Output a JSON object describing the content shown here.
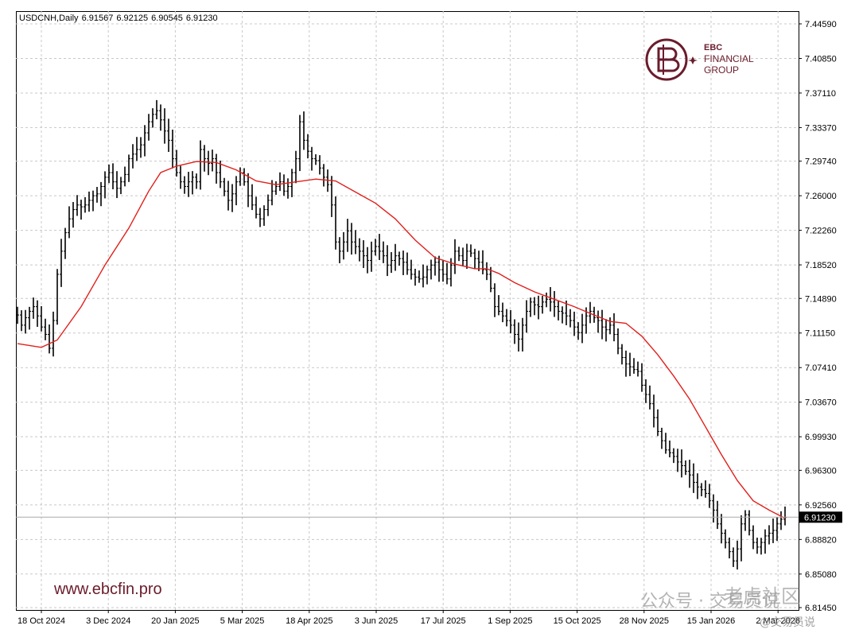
{
  "header": {
    "symbol": "USDCNH,Daily",
    "open": "6.91567",
    "high": "6.92125",
    "low": "6.90545",
    "close": "6.91230"
  },
  "branding": {
    "logo_line1": "EBC",
    "logo_line2": "FINANCIAL",
    "logo_line3": "GROUP",
    "website": "www.ebcfin.pro",
    "brand_color": "#6a1c2c",
    "watermark_1": "公众号 · 交易员说",
    "watermark_2": "老虎社区",
    "watermark_3": "@交易员说"
  },
  "colors": {
    "candles": "#000000",
    "moving_average": "#e0201c",
    "grid": "#c8c8c8",
    "current_price_line": "#a8a8a8",
    "price_tag_bg": "#000000",
    "price_tag_text": "#ffffff"
  },
  "chart_data": {
    "type": "line",
    "title": "",
    "xlabel": "",
    "ylabel": "",
    "ylim": [
      6.8145,
      7.4459
    ],
    "y_ticks": [
      "7.44590",
      "7.40850",
      "7.37110",
      "7.33370",
      "7.29740",
      "7.26000",
      "7.22260",
      "7.18520",
      "7.14890",
      "7.11150",
      "7.07410",
      "7.03670",
      "6.99930",
      "6.96300",
      "6.92560",
      "6.88820",
      "6.85080",
      "6.81450"
    ],
    "x_ticks": [
      "18 Oct 2024",
      "3 Dec 2024",
      "20 Jan 2025",
      "5 Mar 2025",
      "18 Apr 2025",
      "3 Jun 2025",
      "17 Jul 2025",
      "1 Sep 2025",
      "15 Oct 2025",
      "28 Nov 2025",
      "15 Jan 2026",
      "2 Mar 2026"
    ],
    "current_price": 6.9123,
    "current_price_label": "6.91230",
    "grid": true,
    "series": [
      {
        "kind": "bars",
        "points": [
          [
            0,
            7.131
          ],
          [
            2,
            7.12
          ],
          [
            4,
            7.128
          ],
          [
            6,
            7.135
          ],
          [
            8,
            7.14
          ],
          [
            10,
            7.13
          ],
          [
            12,
            7.118
          ],
          [
            14,
            7.11
          ],
          [
            16,
            7.095
          ],
          [
            18,
            7.125
          ],
          [
            20,
            7.175
          ],
          [
            22,
            7.2
          ],
          [
            24,
            7.22
          ],
          [
            26,
            7.235
          ],
          [
            28,
            7.245
          ],
          [
            30,
            7.25
          ],
          [
            32,
            7.248
          ],
          [
            34,
            7.25
          ],
          [
            36,
            7.255
          ],
          [
            38,
            7.26
          ],
          [
            40,
            7.262
          ],
          [
            42,
            7.27
          ],
          [
            44,
            7.28
          ],
          [
            46,
            7.285
          ],
          [
            48,
            7.275
          ],
          [
            50,
            7.268
          ],
          [
            52,
            7.275
          ],
          [
            54,
            7.283
          ],
          [
            56,
            7.3
          ],
          [
            58,
            7.305
          ],
          [
            60,
            7.31
          ],
          [
            62,
            7.315
          ],
          [
            64,
            7.328
          ],
          [
            66,
            7.34
          ],
          [
            68,
            7.348
          ],
          [
            70,
            7.352
          ],
          [
            72,
            7.342
          ],
          [
            74,
            7.33
          ],
          [
            76,
            7.32
          ],
          [
            78,
            7.3
          ],
          [
            80,
            7.285
          ],
          [
            82,
            7.275
          ],
          [
            84,
            7.27
          ],
          [
            86,
            7.275
          ],
          [
            88,
            7.28
          ],
          [
            90,
            7.275
          ],
          [
            92,
            7.31
          ],
          [
            94,
            7.3
          ],
          [
            96,
            7.295
          ],
          [
            98,
            7.3
          ],
          [
            100,
            7.285
          ],
          [
            102,
            7.275
          ],
          [
            104,
            7.265
          ],
          [
            106,
            7.255
          ],
          [
            108,
            7.262
          ],
          [
            110,
            7.275
          ],
          [
            112,
            7.285
          ],
          [
            114,
            7.275
          ],
          [
            116,
            7.26
          ],
          [
            118,
            7.25
          ],
          [
            120,
            7.24
          ],
          [
            122,
            7.235
          ],
          [
            124,
            7.245
          ],
          [
            126,
            7.255
          ],
          [
            128,
            7.265
          ],
          [
            130,
            7.27
          ],
          [
            132,
            7.275
          ],
          [
            134,
            7.265
          ],
          [
            136,
            7.27
          ],
          [
            138,
            7.285
          ],
          [
            140,
            7.3
          ],
          [
            142,
            7.34
          ],
          [
            144,
            7.32
          ],
          [
            146,
            7.308
          ],
          [
            148,
            7.3
          ],
          [
            150,
            7.298
          ],
          [
            152,
            7.29
          ],
          [
            154,
            7.28
          ],
          [
            156,
            7.272
          ],
          [
            158,
            7.25
          ],
          [
            160,
            7.21
          ],
          [
            162,
            7.2
          ],
          [
            164,
            7.21
          ],
          [
            166,
            7.222
          ],
          [
            168,
            7.21
          ],
          [
            170,
            7.205
          ],
          [
            172,
            7.2
          ],
          [
            174,
            7.195
          ],
          [
            176,
            7.19
          ],
          [
            178,
            7.2
          ],
          [
            180,
            7.205
          ],
          [
            182,
            7.2
          ],
          [
            184,
            7.195
          ],
          [
            186,
            7.185
          ],
          [
            188,
            7.19
          ],
          [
            190,
            7.195
          ],
          [
            192,
            7.192
          ],
          [
            194,
            7.188
          ],
          [
            196,
            7.18
          ],
          [
            198,
            7.175
          ],
          [
            200,
            7.172
          ],
          [
            202,
            7.17
          ],
          [
            204,
            7.172
          ],
          [
            206,
            7.18
          ],
          [
            208,
            7.185
          ],
          [
            210,
            7.188
          ],
          [
            212,
            7.18
          ],
          [
            214,
            7.175
          ],
          [
            216,
            7.17
          ],
          [
            218,
            7.185
          ],
          [
            220,
            7.2
          ],
          [
            222,
            7.195
          ],
          [
            224,
            7.19
          ],
          [
            226,
            7.2
          ],
          [
            228,
            7.198
          ],
          [
            230,
            7.192
          ],
          [
            232,
            7.188
          ],
          [
            234,
            7.18
          ],
          [
            236,
            7.175
          ],
          [
            238,
            7.16
          ],
          [
            240,
            7.14
          ],
          [
            242,
            7.135
          ],
          [
            244,
            7.13
          ],
          [
            246,
            7.125
          ],
          [
            248,
            7.12
          ],
          [
            250,
            7.11
          ],
          [
            252,
            7.105
          ],
          [
            254,
            7.12
          ],
          [
            256,
            7.135
          ],
          [
            258,
            7.145
          ],
          [
            260,
            7.142
          ],
          [
            262,
            7.14
          ],
          [
            264,
            7.145
          ],
          [
            266,
            7.148
          ],
          [
            268,
            7.145
          ],
          [
            270,
            7.14
          ],
          [
            272,
            7.135
          ],
          [
            274,
            7.133
          ],
          [
            276,
            7.13
          ],
          [
            278,
            7.125
          ],
          [
            280,
            7.118
          ],
          [
            282,
            7.112
          ],
          [
            284,
            7.12
          ],
          [
            286,
            7.13
          ],
          [
            288,
            7.135
          ],
          [
            290,
            7.128
          ],
          [
            292,
            7.125
          ],
          [
            294,
            7.118
          ],
          [
            296,
            7.115
          ],
          [
            298,
            7.12
          ],
          [
            300,
            7.11
          ],
          [
            302,
            7.095
          ],
          [
            304,
            7.085
          ],
          [
            306,
            7.078
          ],
          [
            308,
            7.075
          ],
          [
            310,
            7.072
          ],
          [
            312,
            7.07
          ],
          [
            314,
            7.055
          ],
          [
            316,
            7.045
          ],
          [
            318,
            7.035
          ],
          [
            320,
            7.02
          ],
          [
            322,
            7.005
          ],
          [
            324,
            6.995
          ],
          [
            326,
            6.985
          ],
          [
            328,
            6.982
          ],
          [
            330,
            6.978
          ],
          [
            332,
            6.972
          ],
          [
            334,
            6.968
          ],
          [
            336,
            6.962
          ],
          [
            338,
            6.958
          ],
          [
            340,
            6.95
          ],
          [
            342,
            6.945
          ],
          [
            344,
            6.942
          ],
          [
            346,
            6.938
          ],
          [
            348,
            6.93
          ],
          [
            350,
            6.92
          ],
          [
            352,
            6.905
          ],
          [
            354,
            6.895
          ],
          [
            356,
            6.885
          ],
          [
            358,
            6.875
          ],
          [
            360,
            6.865
          ],
          [
            362,
            6.878
          ],
          [
            364,
            6.905
          ],
          [
            366,
            6.915
          ],
          [
            368,
            6.898
          ],
          [
            370,
            6.885
          ],
          [
            372,
            6.88
          ],
          [
            374,
            6.885
          ],
          [
            376,
            6.892
          ],
          [
            378,
            6.895
          ],
          [
            380,
            6.898
          ],
          [
            382,
            6.905
          ],
          [
            384,
            6.91
          ],
          [
            386,
            6.912
          ]
        ]
      },
      {
        "kind": "moving_average",
        "points": [
          [
            0,
            7.1
          ],
          [
            12,
            7.096
          ],
          [
            20,
            7.104
          ],
          [
            32,
            7.14
          ],
          [
            44,
            7.185
          ],
          [
            56,
            7.225
          ],
          [
            66,
            7.265
          ],
          [
            72,
            7.285
          ],
          [
            80,
            7.292
          ],
          [
            90,
            7.297
          ],
          [
            100,
            7.296
          ],
          [
            110,
            7.288
          ],
          [
            120,
            7.276
          ],
          [
            130,
            7.272
          ],
          [
            140,
            7.275
          ],
          [
            150,
            7.278
          ],
          [
            160,
            7.276
          ],
          [
            170,
            7.264
          ],
          [
            180,
            7.252
          ],
          [
            190,
            7.235
          ],
          [
            200,
            7.212
          ],
          [
            210,
            7.193
          ],
          [
            220,
            7.186
          ],
          [
            230,
            7.181
          ],
          [
            236,
            7.181
          ],
          [
            242,
            7.176
          ],
          [
            250,
            7.166
          ],
          [
            260,
            7.156
          ],
          [
            270,
            7.148
          ],
          [
            280,
            7.14
          ],
          [
            290,
            7.131
          ],
          [
            298,
            7.124
          ],
          [
            306,
            7.122
          ],
          [
            314,
            7.108
          ],
          [
            322,
            7.088
          ],
          [
            330,
            7.065
          ],
          [
            338,
            7.04
          ],
          [
            346,
            7.01
          ],
          [
            354,
            6.98
          ],
          [
            362,
            6.952
          ],
          [
            370,
            6.93
          ],
          [
            378,
            6.92
          ],
          [
            386,
            6.911
          ]
        ]
      }
    ]
  }
}
